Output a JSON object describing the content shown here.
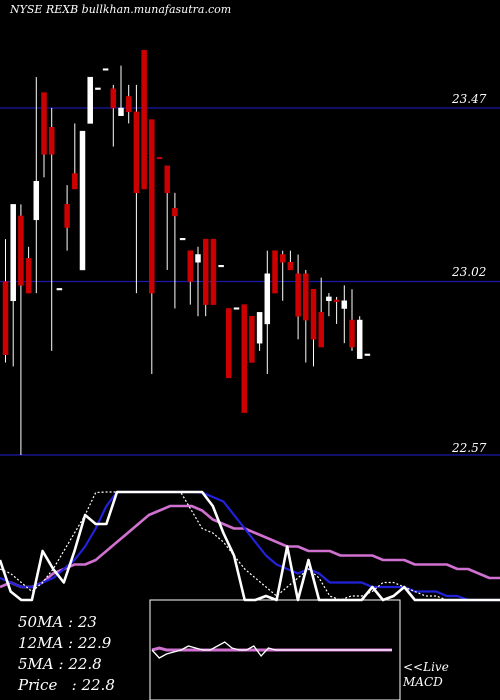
{
  "header": {
    "title": "NYSE REXB bullkhan.munafasutra.com"
  },
  "stats": {
    "ma50": "50MA : 23",
    "ma12": "12MA : 22.9",
    "ma5": "5MA : 22.8",
    "price": "Price   : 22.8"
  },
  "macd_label": {
    "line1": "<<Live",
    "line2": "MACD"
  },
  "colors": {
    "up": "#ffffff",
    "down": "#cc0000",
    "level": "#1a1aa8",
    "ma_pink": "#d070d0",
    "ma_blue": "#2222dd"
  },
  "chart_data": [
    {
      "type": "candlestick",
      "title": "NYSE REXB bullkhan.munafasutra.com",
      "ylim": [
        22.57,
        23.6
      ],
      "levels": [
        23.47,
        23.02,
        22.57
      ],
      "level_labels": [
        "23.47",
        "23.02",
        "22.57"
      ],
      "candles": [
        {
          "o": 23.02,
          "c": 22.83,
          "h": 23.13,
          "l": 22.81,
          "up": false
        },
        {
          "o": 22.97,
          "c": 23.22,
          "h": 23.22,
          "l": 22.8,
          "up": true
        },
        {
          "o": 23.19,
          "c": 23.01,
          "h": 23.22,
          "l": 22.57,
          "up": false
        },
        {
          "o": 23.08,
          "c": 22.99,
          "h": 23.11,
          "l": 22.99,
          "up": false
        },
        {
          "o": 23.18,
          "c": 23.28,
          "h": 23.55,
          "l": 22.99,
          "up": true
        },
        {
          "o": 23.51,
          "c": 23.35,
          "h": 23.51,
          "l": 23.29,
          "up": false
        },
        {
          "o": 23.42,
          "c": 23.35,
          "h": 23.47,
          "l": 22.84,
          "up": false
        },
        {
          "o": 23.0,
          "c": 23.0,
          "h": 23.0,
          "l": 23.0,
          "up": true
        },
        {
          "o": 23.22,
          "c": 23.16,
          "h": 23.27,
          "l": 23.1,
          "up": false
        },
        {
          "o": 23.26,
          "c": 23.3,
          "h": 23.43,
          "l": 23.27,
          "up": false
        },
        {
          "o": 23.05,
          "c": 23.41,
          "h": 23.41,
          "l": 23.05,
          "up": true
        },
        {
          "o": 23.43,
          "c": 23.55,
          "h": 23.55,
          "l": 23.43,
          "up": true
        },
        {
          "o": 23.52,
          "c": 23.52,
          "h": 23.52,
          "l": 23.52,
          "up": true
        },
        {
          "o": 23.57,
          "c": 23.57,
          "h": 23.57,
          "l": 23.57,
          "up": true
        },
        {
          "o": 23.52,
          "c": 23.47,
          "h": 23.53,
          "l": 23.37,
          "up": false
        },
        {
          "o": 23.45,
          "c": 23.47,
          "h": 23.58,
          "l": 23.45,
          "up": true
        },
        {
          "o": 23.5,
          "c": 23.46,
          "h": 23.53,
          "l": 23.43,
          "up": false
        },
        {
          "o": 23.46,
          "c": 23.25,
          "h": 23.53,
          "l": 22.99,
          "up": false
        },
        {
          "o": 23.62,
          "c": 23.26,
          "h": 23.62,
          "l": 23.26,
          "up": false
        },
        {
          "o": 23.44,
          "c": 22.99,
          "h": 23.44,
          "l": 22.78,
          "up": false
        },
        {
          "o": 23.34,
          "c": 23.34,
          "h": 23.34,
          "l": 23.34,
          "up": false
        },
        {
          "o": 23.32,
          "c": 23.25,
          "h": 23.32,
          "l": 23.05,
          "up": false
        },
        {
          "o": 23.19,
          "c": 23.21,
          "h": 23.25,
          "l": 22.95,
          "up": false
        },
        {
          "o": 23.13,
          "c": 23.13,
          "h": 23.13,
          "l": 23.13,
          "up": true
        },
        {
          "o": 23.02,
          "c": 23.1,
          "h": 23.1,
          "l": 22.96,
          "up": false
        },
        {
          "o": 23.07,
          "c": 23.09,
          "h": 23.11,
          "l": 22.93,
          "up": true
        },
        {
          "o": 23.13,
          "c": 22.96,
          "h": 23.13,
          "l": 22.93,
          "up": false
        },
        {
          "o": 23.13,
          "c": 22.96,
          "h": 23.13,
          "l": 22.96,
          "up": false
        },
        {
          "o": 23.06,
          "c": 23.06,
          "h": 23.06,
          "l": 23.06,
          "up": true
        },
        {
          "o": 22.95,
          "c": 22.77,
          "h": 22.95,
          "l": 22.77,
          "up": false
        },
        {
          "o": 22.95,
          "c": 22.95,
          "h": 22.95,
          "l": 22.95,
          "up": true
        },
        {
          "o": 22.96,
          "c": 22.68,
          "h": 22.96,
          "l": 22.68,
          "up": false
        },
        {
          "o": 22.93,
          "c": 22.81,
          "h": 22.93,
          "l": 22.81,
          "up": false
        },
        {
          "o": 22.86,
          "c": 22.94,
          "h": 22.94,
          "l": 22.84,
          "up": true
        },
        {
          "o": 22.91,
          "c": 23.04,
          "h": 23.1,
          "l": 22.78,
          "up": true
        },
        {
          "o": 22.99,
          "c": 23.1,
          "h": 23.1,
          "l": 22.99,
          "up": false
        },
        {
          "o": 23.07,
          "c": 23.09,
          "h": 23.1,
          "l": 22.97,
          "up": false
        },
        {
          "o": 23.07,
          "c": 23.05,
          "h": 23.1,
          "l": 23.05,
          "up": false
        },
        {
          "o": 23.04,
          "c": 22.93,
          "h": 23.09,
          "l": 22.87,
          "up": false
        },
        {
          "o": 23.04,
          "c": 22.92,
          "h": 23.05,
          "l": 22.81,
          "up": false
        },
        {
          "o": 23.0,
          "c": 22.87,
          "h": 23.0,
          "l": 22.8,
          "up": false
        },
        {
          "o": 22.94,
          "c": 22.85,
          "h": 23.03,
          "l": 22.85,
          "up": false
        },
        {
          "o": 22.98,
          "c": 22.97,
          "h": 22.99,
          "l": 22.93,
          "up": true
        },
        {
          "o": 22.97,
          "c": 22.97,
          "h": 22.98,
          "l": 22.91,
          "up": false
        },
        {
          "o": 22.95,
          "c": 22.97,
          "h": 23.01,
          "l": 22.86,
          "up": true
        },
        {
          "o": 22.92,
          "c": 22.85,
          "h": 23.0,
          "l": 22.84,
          "up": false
        },
        {
          "o": 22.82,
          "c": 22.92,
          "h": 22.93,
          "l": 22.82,
          "up": true
        },
        {
          "o": 22.83,
          "c": 22.83,
          "h": 22.83,
          "l": 22.83,
          "up": true
        }
      ]
    },
    {
      "type": "line",
      "series": [
        {
          "values": [
            22.86,
            22.87,
            22.86,
            22.86,
            22.87,
            22.89,
            22.9,
            22.91,
            22.91,
            22.92,
            22.94,
            22.96,
            22.98,
            23.0,
            23.02,
            23.03,
            23.04,
            23.04,
            23.04,
            23.03,
            23.01,
            23.0,
            22.99,
            22.99,
            22.98,
            22.97,
            22.96,
            22.95,
            22.95,
            22.94,
            22.94,
            22.94,
            22.93,
            22.93,
            22.93,
            22.93,
            22.92,
            22.92,
            22.92,
            22.91,
            22.91,
            22.91,
            22.91,
            22.9,
            22.9,
            22.89,
            22.88,
            22.88
          ]
        },
        {
          "values": [
            22.88,
            22.87,
            22.86,
            22.86,
            22.87,
            22.88,
            22.9,
            22.92,
            22.95,
            22.99,
            23.04,
            23.09,
            23.15,
            23.2,
            23.22,
            23.21,
            23.17,
            23.13,
            23.09,
            23.07,
            23.06,
            23.05,
            23.02,
            22.99,
            22.96,
            22.93,
            22.91,
            22.9,
            22.89,
            22.9,
            22.89,
            22.87,
            22.87,
            22.87,
            22.87,
            22.86,
            22.86,
            22.86,
            22.86,
            22.85,
            22.85,
            22.85,
            22.84,
            22.84,
            22.83,
            22.82,
            22.81,
            22.8
          ]
        },
        {
          "values": [
            22.9,
            22.89,
            22.87,
            22.85,
            22.87,
            22.9,
            22.94,
            22.98,
            23.02,
            23.07,
            23.14,
            23.2,
            23.26,
            23.3,
            23.3,
            23.23,
            23.14,
            23.07,
            23.03,
            22.99,
            22.98,
            22.96,
            22.93,
            22.9,
            22.88,
            22.86,
            22.84,
            22.86,
            22.88,
            22.9,
            22.88,
            22.84,
            22.83,
            22.84,
            22.84,
            22.85,
            22.87,
            22.87,
            22.86,
            22.85,
            22.84,
            22.84,
            22.83,
            22.81,
            22.8,
            22.79,
            22.8,
            22.81
          ]
        },
        {
          "values": [
            22.92,
            22.85,
            22.79,
            22.82,
            22.94,
            22.9,
            22.87,
            22.94,
            23.02,
            23.0,
            23.0,
            23.1,
            23.2,
            23.3,
            23.38,
            23.36,
            23.32,
            23.36,
            23.3,
            23.12,
            23.04,
            22.98,
            22.93,
            22.8,
            22.79,
            22.84,
            22.8,
            22.95,
            22.76,
            22.92,
            22.82,
            22.7,
            22.7,
            22.77,
            22.72,
            22.86,
            22.8,
            22.84,
            22.86,
            22.81,
            22.72,
            22.8,
            22.77,
            22.7,
            22.74,
            22.8,
            22.75,
            22.74
          ]
        }
      ]
    },
    {
      "type": "line",
      "title": "",
      "series": [
        {
          "values": [
            0.0,
            0.01,
            0.0,
            0.0,
            0.0,
            0.0,
            0.0,
            0.0,
            0.0,
            0.0,
            0.0,
            0.0,
            0.0,
            0.0,
            0.0,
            0.0,
            0.0,
            0.0,
            0.0,
            0.0,
            0.0,
            0.0,
            0.0,
            0.0,
            0.0,
            0.0,
            0.0,
            0.0,
            0.0,
            0.0,
            0.0,
            0.0,
            0.0,
            0.0
          ]
        },
        {
          "values": [
            0.0,
            -0.04,
            -0.02,
            -0.01,
            0.0,
            0.02,
            0.01,
            0.0,
            0.0,
            0.02,
            0.04,
            0.01,
            0.0,
            0.0,
            0.02,
            -0.03,
            0.01,
            0.0,
            0.0,
            0.0,
            0.0,
            0.0,
            0.0,
            0.0,
            0.0,
            0.0,
            0.0,
            0.0,
            0.0,
            0.0,
            0.0,
            0.0,
            0.0,
            0.0
          ]
        }
      ],
      "ylim": [
        -0.15,
        0.15
      ]
    }
  ]
}
